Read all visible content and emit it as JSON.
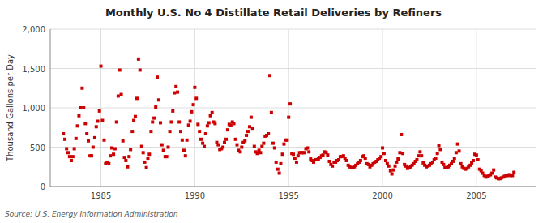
{
  "chart_data": {
    "type": "scatter",
    "title": "Monthly U.S. No 4 Distillate Retail Deliveries by Refiners",
    "ylabel": "Thousand Gallons per Day",
    "annotations": [
      "Source: U.S. Energy Information Administration"
    ],
    "color": "#CC0000",
    "marker": "square",
    "grid": true,
    "xlim": [
      1982.3,
      2008.2
    ],
    "xticks": [
      1985,
      1990,
      1995,
      2000,
      2005
    ],
    "ylim": [
      0,
      2000
    ],
    "yticks": [
      0,
      500,
      {
        "value": 1000,
        "label": "1,000"
      },
      {
        "value": 1500,
        "label": "1,500"
      },
      {
        "value": 2000,
        "label": "2,000"
      }
    ],
    "x": [
      1983.0,
      1983.08,
      1983.17,
      1983.25,
      1983.33,
      1983.42,
      1983.5,
      1983.58,
      1983.67,
      1983.75,
      1983.83,
      1983.92,
      1984.0,
      1984.08,
      1984.17,
      1984.25,
      1984.33,
      1984.42,
      1984.5,
      1984.58,
      1984.67,
      1984.75,
      1984.83,
      1984.92,
      1985.0,
      1985.08,
      1985.17,
      1985.25,
      1985.33,
      1985.42,
      1985.5,
      1985.58,
      1985.67,
      1985.75,
      1985.83,
      1985.92,
      1986.0,
      1986.08,
      1986.17,
      1986.25,
      1986.33,
      1986.42,
      1986.5,
      1986.58,
      1986.67,
      1986.75,
      1986.83,
      1986.92,
      1987.0,
      1987.08,
      1987.17,
      1987.25,
      1987.33,
      1987.42,
      1987.5,
      1987.58,
      1987.67,
      1987.75,
      1987.83,
      1987.92,
      1988.0,
      1988.08,
      1988.17,
      1988.25,
      1988.33,
      1988.42,
      1988.5,
      1988.58,
      1988.67,
      1988.75,
      1988.83,
      1988.92,
      1989.0,
      1989.08,
      1989.17,
      1989.25,
      1989.33,
      1989.42,
      1989.5,
      1989.58,
      1989.67,
      1989.75,
      1989.83,
      1989.92,
      1990.0,
      1990.08,
      1990.17,
      1990.25,
      1990.33,
      1990.42,
      1990.5,
      1990.58,
      1990.67,
      1990.75,
      1990.83,
      1990.92,
      1991.0,
      1991.08,
      1991.17,
      1991.25,
      1991.33,
      1991.42,
      1991.5,
      1991.58,
      1991.67,
      1991.75,
      1991.83,
      1991.92,
      1992.0,
      1992.08,
      1992.17,
      1992.25,
      1992.33,
      1992.42,
      1992.5,
      1992.58,
      1992.67,
      1992.75,
      1992.83,
      1992.92,
      1993.0,
      1993.08,
      1993.17,
      1993.25,
      1993.33,
      1993.42,
      1993.5,
      1993.58,
      1993.67,
      1993.75,
      1993.83,
      1993.92,
      1994.0,
      1994.08,
      1994.17,
      1994.25,
      1994.33,
      1994.42,
      1994.5,
      1994.58,
      1994.67,
      1994.75,
      1994.83,
      1994.92,
      1995.0,
      1995.08,
      1995.17,
      1995.25,
      1995.33,
      1995.42,
      1995.5,
      1995.58,
      1995.67,
      1995.75,
      1995.83,
      1995.92,
      1996.0,
      1996.08,
      1996.17,
      1996.25,
      1996.33,
      1996.42,
      1996.5,
      1996.58,
      1996.67,
      1996.75,
      1996.83,
      1996.92,
      1997.0,
      1997.08,
      1997.17,
      1997.25,
      1997.33,
      1997.42,
      1997.5,
      1997.58,
      1997.67,
      1997.75,
      1997.83,
      1997.92,
      1998.0,
      1998.08,
      1998.17,
      1998.25,
      1998.33,
      1998.42,
      1998.5,
      1998.58,
      1998.67,
      1998.75,
      1998.83,
      1998.92,
      1999.0,
      1999.08,
      1999.17,
      1999.25,
      1999.33,
      1999.42,
      1999.5,
      1999.58,
      1999.67,
      1999.75,
      1999.83,
      1999.92,
      2000.0,
      2000.08,
      2000.17,
      2000.25,
      2000.33,
      2000.42,
      2000.5,
      2000.58,
      2000.67,
      2000.75,
      2000.83,
      2000.92,
      2001.0,
      2001.08,
      2001.17,
      2001.25,
      2001.33,
      2001.42,
      2001.5,
      2001.58,
      2001.67,
      2001.75,
      2001.83,
      2001.92,
      2002.0,
      2002.08,
      2002.17,
      2002.25,
      2002.33,
      2002.42,
      2002.5,
      2002.58,
      2002.67,
      2002.75,
      2002.83,
      2002.92,
      2003.0,
      2003.08,
      2003.17,
      2003.25,
      2003.33,
      2003.42,
      2003.5,
      2003.58,
      2003.67,
      2003.75,
      2003.83,
      2003.92,
      2004.0,
      2004.08,
      2004.17,
      2004.25,
      2004.33,
      2004.42,
      2004.5,
      2004.58,
      2004.67,
      2004.75,
      2004.83,
      2004.92,
      2005.0,
      2005.08,
      2005.17,
      2005.25,
      2005.33,
      2005.42,
      2005.5,
      2005.58,
      2005.67,
      2005.75,
      2005.83,
      2005.92,
      2006.0,
      2006.08,
      2006.17,
      2006.25,
      2006.33,
      2006.42,
      2006.5,
      2006.58,
      2006.67,
      2006.75,
      2006.83,
      2006.92,
      2007.0
    ],
    "values": [
      670,
      600,
      480,
      430,
      380,
      330,
      380,
      480,
      610,
      770,
      900,
      1000,
      1250,
      1000,
      800,
      670,
      580,
      390,
      390,
      500,
      620,
      760,
      830,
      960,
      1530,
      840,
      590,
      290,
      310,
      290,
      390,
      490,
      410,
      480,
      820,
      1150,
      1480,
      1170,
      580,
      370,
      330,
      250,
      380,
      470,
      700,
      840,
      890,
      1120,
      1620,
      1480,
      510,
      430,
      310,
      240,
      360,
      410,
      700,
      820,
      870,
      1010,
      1390,
      1100,
      810,
      530,
      460,
      380,
      380,
      500,
      700,
      820,
      960,
      1190,
      1270,
      1200,
      820,
      700,
      590,
      460,
      390,
      590,
      780,
      830,
      950,
      1040,
      1260,
      1120,
      790,
      700,
      600,
      550,
      510,
      670,
      770,
      810,
      900,
      940,
      820,
      800,
      560,
      530,
      470,
      480,
      500,
      560,
      600,
      720,
      790,
      780,
      820,
      800,
      600,
      530,
      460,
      440,
      500,
      560,
      580,
      650,
      700,
      760,
      880,
      740,
      510,
      440,
      420,
      460,
      430,
      510,
      550,
      640,
      650,
      670,
      1410,
      940,
      550,
      490,
      310,
      220,
      170,
      290,
      410,
      540,
      590,
      590,
      880,
      1050,
      420,
      410,
      360,
      310,
      390,
      430,
      430,
      430,
      430,
      480,
      490,
      440,
      350,
      330,
      310,
      340,
      340,
      350,
      370,
      390,
      400,
      440,
      430,
      400,
      320,
      280,
      260,
      310,
      310,
      330,
      340,
      380,
      380,
      390,
      360,
      330,
      270,
      250,
      240,
      240,
      250,
      270,
      290,
      310,
      330,
      380,
      390,
      360,
      290,
      280,
      250,
      270,
      290,
      310,
      320,
      340,
      360,
      380,
      490,
      420,
      330,
      290,
      260,
      200,
      160,
      210,
      260,
      310,
      350,
      430,
      660,
      420,
      280,
      260,
      230,
      240,
      250,
      270,
      290,
      320,
      340,
      390,
      440,
      390,
      300,
      270,
      250,
      260,
      270,
      290,
      310,
      340,
      360,
      420,
      520,
      470,
      310,
      280,
      240,
      240,
      250,
      270,
      290,
      320,
      360,
      430,
      540,
      450,
      290,
      250,
      230,
      220,
      230,
      250,
      270,
      300,
      330,
      410,
      400,
      340,
      220,
      200,
      170,
      140,
      120,
      130,
      140,
      150,
      170,
      210,
      120,
      110,
      100,
      100,
      110,
      120,
      130,
      140,
      140,
      150,
      140,
      140,
      180
    ]
  }
}
